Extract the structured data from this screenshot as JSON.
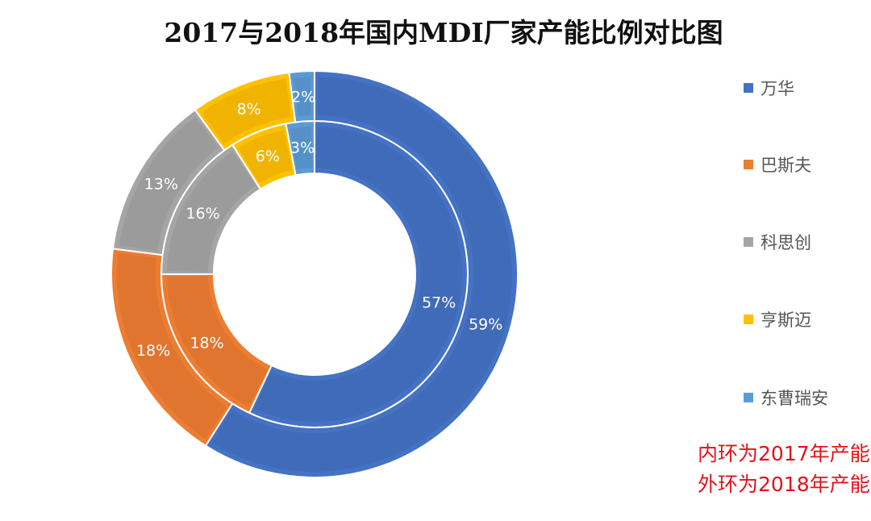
{
  "chart_data": {
    "type": "donut",
    "title": "2017与2018年国内MDI厂家产能比例对比图",
    "categories": [
      "万华",
      "巴斯夫",
      "科思创",
      "亨斯迈",
      "东曹瑞安"
    ],
    "colors": [
      "#4472c4",
      "#ed7d31",
      "#a5a5a5",
      "#ffc000",
      "#5b9bd5"
    ],
    "series": [
      {
        "values": [
          57,
          18,
          16,
          6,
          3
        ],
        "labels": [
          "57%",
          "18%",
          "16%",
          "6%",
          "3%"
        ]
      },
      {
        "values": [
          59,
          18,
          13,
          8,
          2
        ],
        "labels": [
          "59%",
          "18%",
          "13%",
          "8%",
          "2%"
        ]
      }
    ],
    "legend_position": "right",
    "annotation": [
      "内环为2017年产能",
      "外环为2018年产能"
    ]
  }
}
